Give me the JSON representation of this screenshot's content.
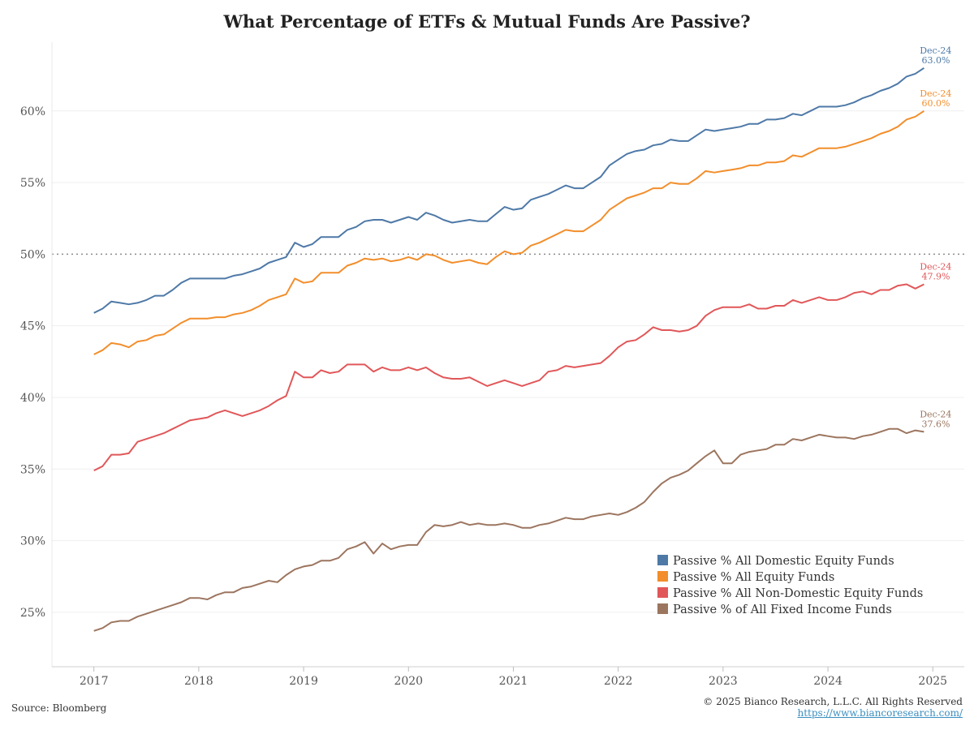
{
  "title": "What Percentage of ETFs & Mutual Funds Are Passive?",
  "source": "Source: Bloomberg",
  "copyright": "© 2025 Bianco Research, L.L.C. All Rights Reserved",
  "url": "https://www.biancoresearch.com/",
  "chart_data": {
    "type": "line",
    "title": "What Percentage of ETFs & Mutual Funds Are Passive?",
    "xlabel": "",
    "ylabel": "",
    "x_ticks": [
      "2017",
      "2018",
      "2019",
      "2020",
      "2021",
      "2022",
      "2023",
      "2024",
      "2025"
    ],
    "y_ticks": [
      "25%",
      "30%",
      "35%",
      "40%",
      "45%",
      "50%",
      "55%",
      "60%"
    ],
    "y_tick_values": [
      25,
      30,
      35,
      40,
      45,
      50,
      55,
      60
    ],
    "xlim": [
      2016.6,
      2025.3
    ],
    "ylim": [
      21.2,
      64.8
    ],
    "reference_line": {
      "y": 50,
      "style": "dotted"
    },
    "grid": "horizontal",
    "legend_position": "bottom-right",
    "series": [
      {
        "name": "Passive % All Domestic Equity Funds",
        "color": "#4e79a7",
        "end_label": "Dec-24",
        "end_value_label": "63.0%",
        "x_start": 2017.0,
        "step": 0.08333,
        "values": [
          45.9,
          46.2,
          46.7,
          46.6,
          46.5,
          46.6,
          46.8,
          47.1,
          47.1,
          47.5,
          48.0,
          48.3,
          48.3,
          48.3,
          48.3,
          48.3,
          48.5,
          48.6,
          48.8,
          49.0,
          49.4,
          49.6,
          49.8,
          50.8,
          50.5,
          50.7,
          51.2,
          51.2,
          51.2,
          51.7,
          51.9,
          52.3,
          52.4,
          52.4,
          52.2,
          52.4,
          52.6,
          52.4,
          52.9,
          52.7,
          52.4,
          52.2,
          52.3,
          52.4,
          52.3,
          52.3,
          52.8,
          53.3,
          53.1,
          53.2,
          53.8,
          54.0,
          54.2,
          54.5,
          54.8,
          54.6,
          54.6,
          55.0,
          55.4,
          56.2,
          56.6,
          57.0,
          57.2,
          57.3,
          57.6,
          57.7,
          58.0,
          57.9,
          57.9,
          58.3,
          58.7,
          58.6,
          58.7,
          58.8,
          58.9,
          59.1,
          59.1,
          59.4,
          59.4,
          59.5,
          59.8,
          59.7,
          60.0,
          60.3,
          60.3,
          60.3,
          60.4,
          60.6,
          60.9,
          61.1,
          61.4,
          61.6,
          61.9,
          62.4,
          62.6,
          63.0
        ]
      },
      {
        "name": "Passive % All Equity Funds",
        "color": "#f28e2b",
        "end_label": "Dec-24",
        "end_value_label": "60.0%",
        "x_start": 2017.0,
        "step": 0.08333,
        "values": [
          43.0,
          43.3,
          43.8,
          43.7,
          43.5,
          43.9,
          44.0,
          44.3,
          44.4,
          44.8,
          45.2,
          45.5,
          45.5,
          45.5,
          45.6,
          45.6,
          45.8,
          45.9,
          46.1,
          46.4,
          46.8,
          47.0,
          47.2,
          48.3,
          48.0,
          48.1,
          48.7,
          48.7,
          48.7,
          49.2,
          49.4,
          49.7,
          49.6,
          49.7,
          49.5,
          49.6,
          49.8,
          49.6,
          50.0,
          49.9,
          49.6,
          49.4,
          49.5,
          49.6,
          49.4,
          49.3,
          49.8,
          50.2,
          50.0,
          50.1,
          50.6,
          50.8,
          51.1,
          51.4,
          51.7,
          51.6,
          51.6,
          52.0,
          52.4,
          53.1,
          53.5,
          53.9,
          54.1,
          54.3,
          54.6,
          54.6,
          55.0,
          54.9,
          54.9,
          55.3,
          55.8,
          55.7,
          55.8,
          55.9,
          56.0,
          56.2,
          56.2,
          56.4,
          56.4,
          56.5,
          56.9,
          56.8,
          57.1,
          57.4,
          57.4,
          57.4,
          57.5,
          57.7,
          57.9,
          58.1,
          58.4,
          58.6,
          58.9,
          59.4,
          59.6,
          60.0
        ]
      },
      {
        "name": "Passive % All Non-Domestic Equity Funds",
        "color": "#e15759",
        "end_label": "Dec-24",
        "end_value_label": "47.9%",
        "x_start": 2017.0,
        "step": 0.08333,
        "values": [
          34.9,
          35.2,
          36.0,
          36.0,
          36.1,
          36.9,
          37.1,
          37.3,
          37.5,
          37.8,
          38.1,
          38.4,
          38.5,
          38.6,
          38.9,
          39.1,
          38.9,
          38.7,
          38.9,
          39.1,
          39.4,
          39.8,
          40.1,
          41.8,
          41.4,
          41.4,
          41.9,
          41.7,
          41.8,
          42.3,
          42.3,
          42.3,
          41.8,
          42.1,
          41.9,
          41.9,
          42.1,
          41.9,
          42.1,
          41.7,
          41.4,
          41.3,
          41.3,
          41.4,
          41.1,
          40.8,
          41.0,
          41.2,
          41.0,
          40.8,
          41.0,
          41.2,
          41.8,
          41.9,
          42.2,
          42.1,
          42.2,
          42.3,
          42.4,
          42.9,
          43.5,
          43.9,
          44.0,
          44.4,
          44.9,
          44.7,
          44.7,
          44.6,
          44.7,
          45.0,
          45.7,
          46.1,
          46.3,
          46.3,
          46.3,
          46.5,
          46.2,
          46.2,
          46.4,
          46.4,
          46.8,
          46.6,
          46.8,
          47.0,
          46.8,
          46.8,
          47.0,
          47.3,
          47.4,
          47.2,
          47.5,
          47.5,
          47.8,
          47.9,
          47.6,
          47.9
        ]
      },
      {
        "name": "Passive % of All Fixed Income Funds",
        "color": "#9c755f",
        "end_label": "Dec-24",
        "end_value_label": "37.6%",
        "x_start": 2017.0,
        "step": 0.08333,
        "values": [
          23.7,
          23.9,
          24.3,
          24.4,
          24.4,
          24.7,
          24.9,
          25.1,
          25.3,
          25.5,
          25.7,
          26.0,
          26.0,
          25.9,
          26.2,
          26.4,
          26.4,
          26.7,
          26.8,
          27.0,
          27.2,
          27.1,
          27.6,
          28.0,
          28.2,
          28.3,
          28.6,
          28.6,
          28.8,
          29.4,
          29.6,
          29.9,
          29.1,
          29.8,
          29.4,
          29.6,
          29.7,
          29.7,
          30.6,
          31.1,
          31.0,
          31.1,
          31.3,
          31.1,
          31.2,
          31.1,
          31.1,
          31.2,
          31.1,
          30.9,
          30.9,
          31.1,
          31.2,
          31.4,
          31.6,
          31.5,
          31.5,
          31.7,
          31.8,
          31.9,
          31.8,
          32.0,
          32.3,
          32.7,
          33.4,
          34.0,
          34.4,
          34.6,
          34.9,
          35.4,
          35.9,
          36.3,
          35.4,
          35.4,
          36.0,
          36.2,
          36.3,
          36.4,
          36.7,
          36.7,
          37.1,
          37.0,
          37.2,
          37.4,
          37.3,
          37.2,
          37.2,
          37.1,
          37.3,
          37.4,
          37.6,
          37.8,
          37.8,
          37.5,
          37.7,
          37.6
        ]
      }
    ]
  }
}
